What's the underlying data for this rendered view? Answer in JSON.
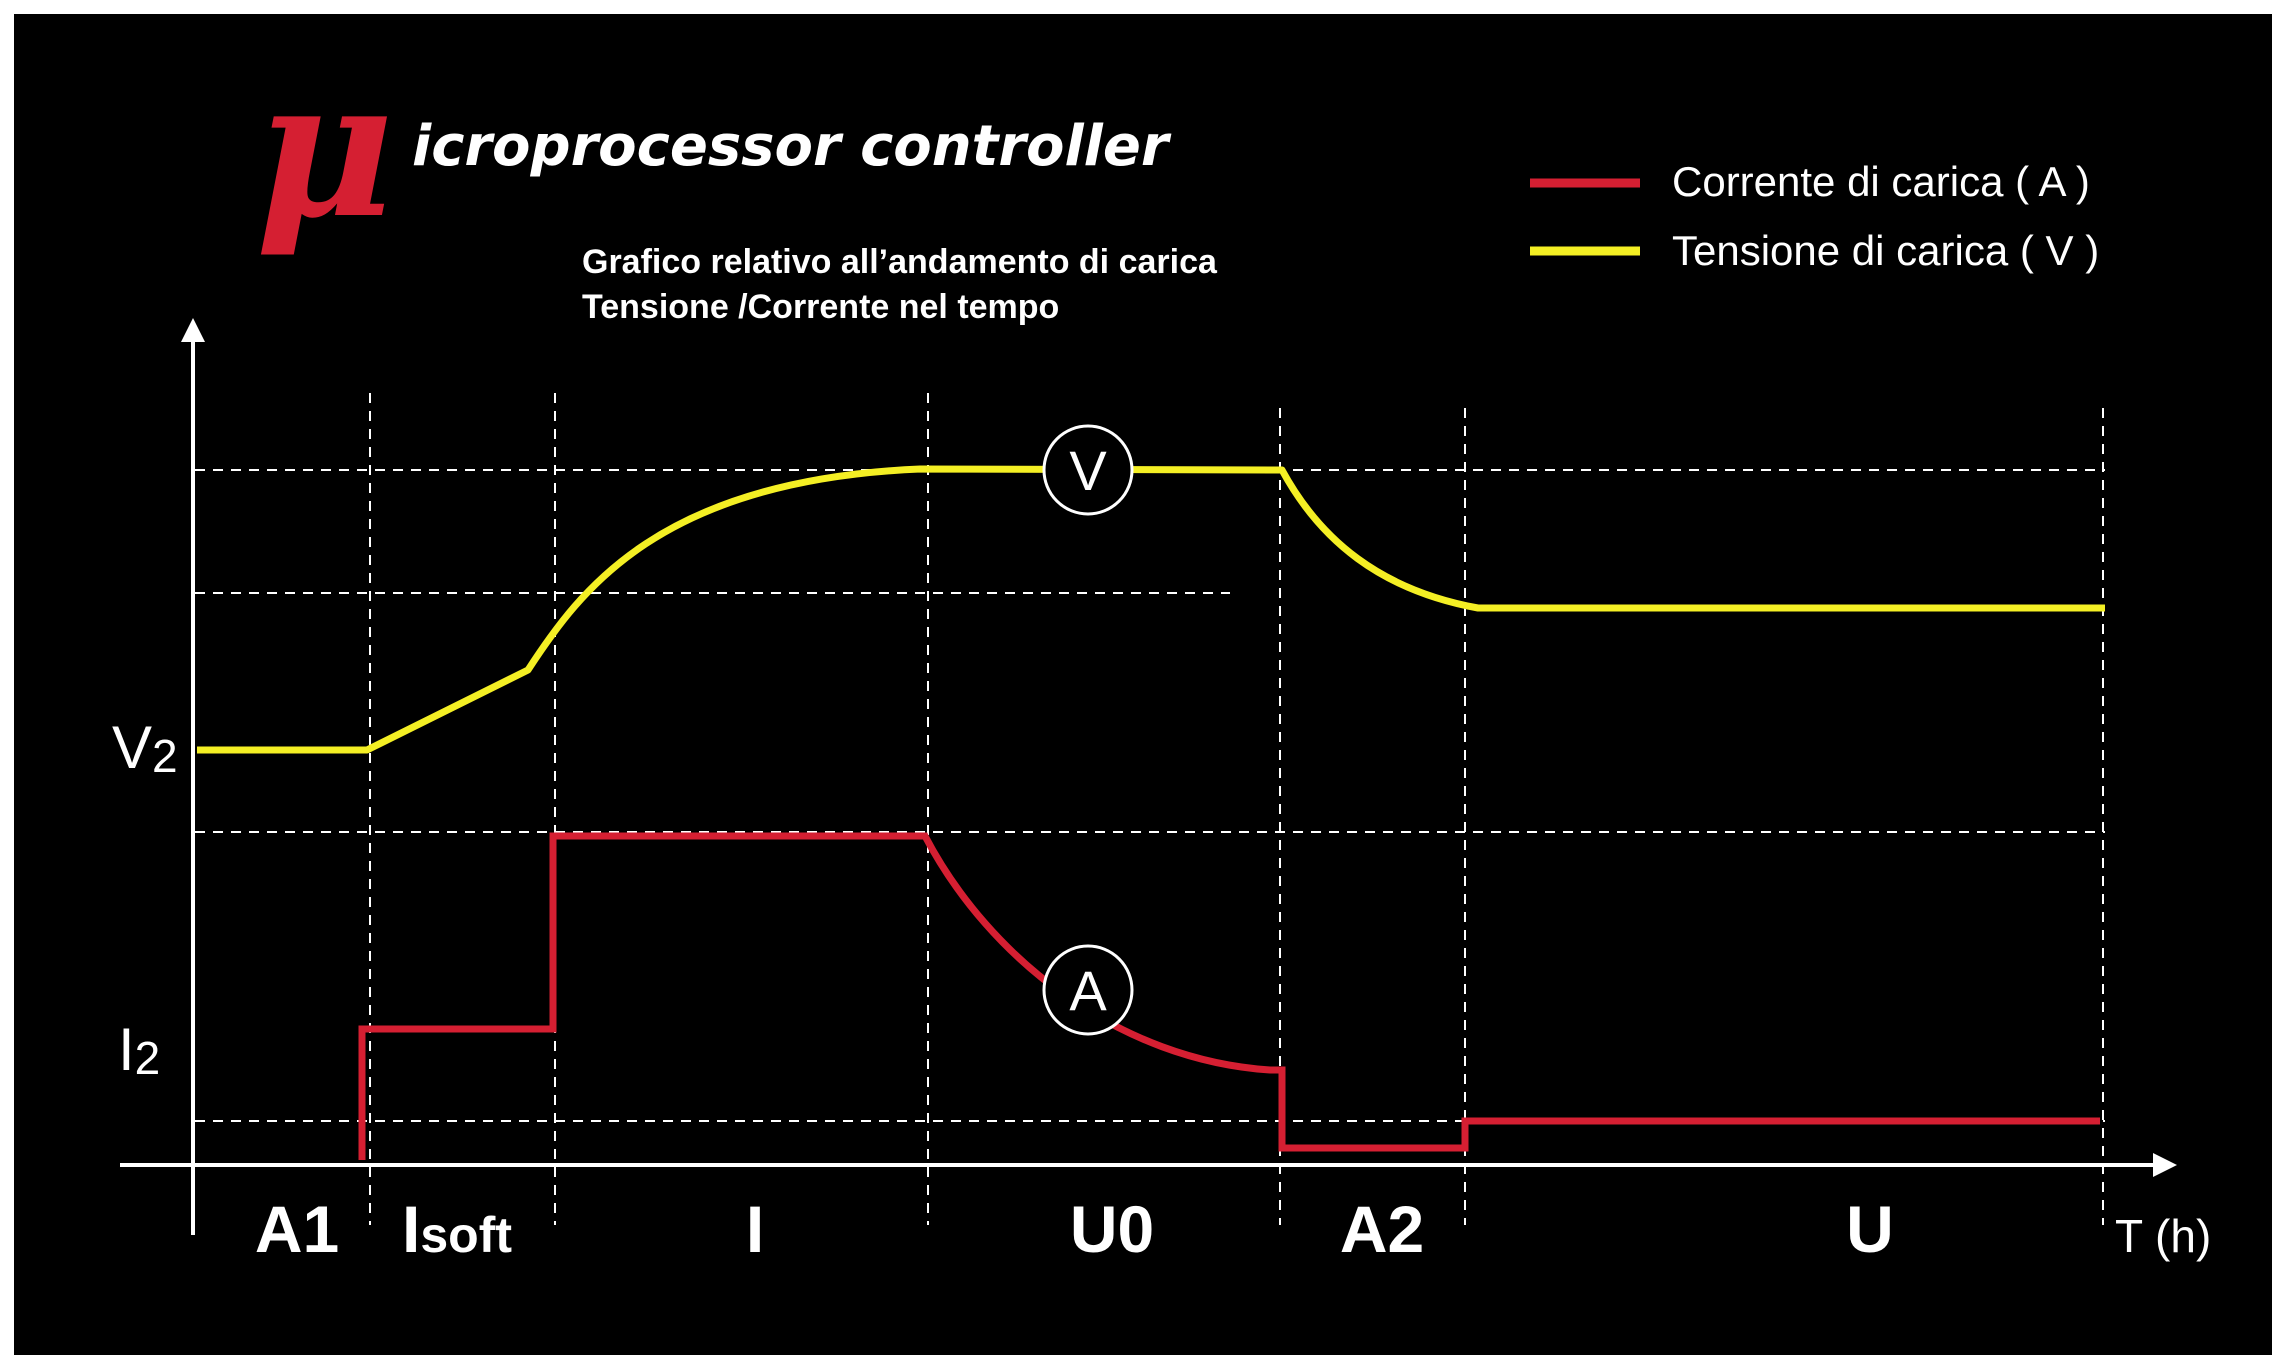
{
  "title": {
    "mu": "μ",
    "rest": "icroprocessor controller"
  },
  "subtitle": {
    "line1": "Grafico relativo all’andamento di carica",
    "line2": "Tensione /Corrente nel tempo"
  },
  "legend": [
    {
      "label": "Corrente di carica ( A )",
      "color": "#d51f32"
    },
    {
      "label": "Tensione di carica ( V )",
      "color": "#f4ef24"
    }
  ],
  "axes": {
    "y_label_v": "V",
    "y_label_v_sub": "2",
    "y_label_i": "I",
    "y_label_i_sub": "2",
    "x_label": "T (h)"
  },
  "phases": [
    {
      "label": "A1",
      "sub": ""
    },
    {
      "label": "I",
      "sub": "soft"
    },
    {
      "label": "I",
      "sub": ""
    },
    {
      "label": "U0",
      "sub": ""
    },
    {
      "label": "A2",
      "sub": ""
    },
    {
      "label": "U",
      "sub": ""
    }
  ],
  "markers": {
    "voltage": "V",
    "current": "A"
  },
  "colors": {
    "background": "#000000",
    "current": "#d51f32",
    "voltage": "#f4ef24",
    "axis": "#ffffff"
  }
}
